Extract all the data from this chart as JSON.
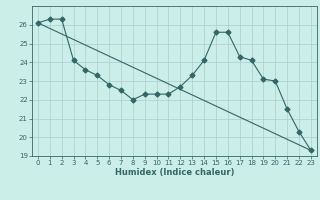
{
  "xlabel": "Humidex (Indice chaleur)",
  "x_values": [
    0,
    1,
    2,
    3,
    4,
    5,
    6,
    7,
    8,
    9,
    10,
    11,
    12,
    13,
    14,
    15,
    16,
    17,
    18,
    19,
    20,
    21,
    22,
    23
  ],
  "line1_y": [
    26.1,
    26.3,
    26.3,
    24.1,
    23.6,
    23.3,
    22.8,
    22.5,
    22.0,
    22.3,
    22.3,
    22.3,
    22.7,
    23.3,
    24.1,
    25.6,
    25.6,
    24.3,
    24.1,
    23.1,
    23.0,
    21.5,
    20.3,
    19.3
  ],
  "line2_x": [
    0,
    23
  ],
  "line2_y": [
    26.1,
    19.3
  ],
  "line_color": "#336666",
  "marker": "D",
  "marker_size": 2.5,
  "bg_color": "#cceee8",
  "grid_color": "#aacccc",
  "ylim": [
    19,
    27
  ],
  "xlim": [
    -0.5,
    23.5
  ],
  "yticks": [
    19,
    20,
    21,
    22,
    23,
    24,
    25,
    26
  ],
  "xticks": [
    0,
    1,
    2,
    3,
    4,
    5,
    6,
    7,
    8,
    9,
    10,
    11,
    12,
    13,
    14,
    15,
    16,
    17,
    18,
    19,
    20,
    21,
    22,
    23
  ],
  "tick_fontsize": 5.0,
  "xlabel_fontsize": 6.0
}
